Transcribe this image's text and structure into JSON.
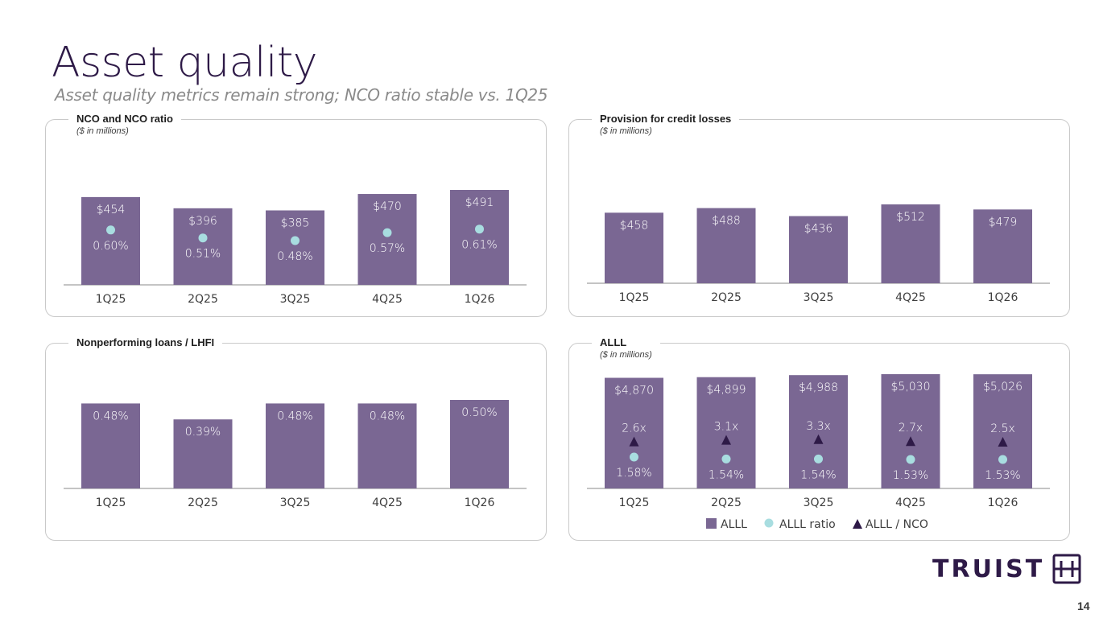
{
  "page": {
    "title": "Asset quality",
    "subtitle": "Asset quality metrics remain strong; NCO ratio stable vs. 1Q25",
    "page_number": "14",
    "logo_text": "TRUIST",
    "logo_icon": "truist-hh-logo-icon"
  },
  "colors": {
    "bar": "#7a6793",
    "dot": "#a8dde0",
    "triangle": "#2e1a47",
    "axis": "#b0b0b0"
  },
  "chart_data": [
    {
      "id": "nco",
      "type": "bar",
      "title": "NCO and NCO ratio",
      "units": "($ in millions)",
      "categories": [
        "1Q25",
        "2Q25",
        "3Q25",
        "4Q25",
        "1Q26"
      ],
      "series": [
        {
          "name": "NCO",
          "kind": "bar",
          "values": [
            454,
            396,
            385,
            470,
            491
          ],
          "labels": [
            "$454",
            "$396",
            "$385",
            "$470",
            "$491"
          ]
        },
        {
          "name": "NCO ratio",
          "kind": "dot",
          "values": [
            0.6,
            0.51,
            0.48,
            0.57,
            0.61
          ],
          "labels": [
            "0.60%",
            "0.51%",
            "0.48%",
            "0.57%",
            "0.61%"
          ]
        }
      ],
      "xlabel": "",
      "ylabel": "",
      "ylim": [
        0,
        491
      ],
      "grid": false
    },
    {
      "id": "provision",
      "type": "bar",
      "title": "Provision for credit losses",
      "units": "($ in millions)",
      "categories": [
        "1Q25",
        "2Q25",
        "3Q25",
        "4Q25",
        "1Q26"
      ],
      "series": [
        {
          "name": "Provision for credit losses",
          "kind": "bar",
          "values": [
            458,
            488,
            436,
            512,
            479
          ],
          "labels": [
            "$458",
            "$488",
            "$436",
            "$512",
            "$479"
          ]
        }
      ],
      "xlabel": "",
      "ylabel": "",
      "ylim": [
        0,
        512
      ],
      "grid": false
    },
    {
      "id": "npl",
      "type": "bar",
      "title": "Nonperforming loans / LHFI",
      "units": "",
      "categories": [
        "1Q25",
        "2Q25",
        "3Q25",
        "4Q25",
        "1Q26"
      ],
      "series": [
        {
          "name": "NPL / LHFI",
          "kind": "bar",
          "values": [
            0.48,
            0.39,
            0.48,
            0.48,
            0.5
          ],
          "labels": [
            "0.48%",
            "0.39%",
            "0.48%",
            "0.48%",
            "0.50%"
          ]
        }
      ],
      "xlabel": "",
      "ylabel": "",
      "ylim": [
        0,
        0.5
      ],
      "grid": false
    },
    {
      "id": "alll",
      "type": "bar",
      "title": "ALLL",
      "units": "($ in millions)",
      "categories": [
        "1Q25",
        "2Q25",
        "3Q25",
        "4Q25",
        "1Q26"
      ],
      "series": [
        {
          "name": "ALLL",
          "kind": "bar",
          "values": [
            4870,
            4899,
            4988,
            5030,
            5026
          ],
          "labels": [
            "$4,870",
            "$4,899",
            "$4,988",
            "$5,030",
            "$5,026"
          ]
        },
        {
          "name": "ALLL ratio",
          "kind": "dot",
          "values": [
            1.58,
            1.54,
            1.54,
            1.53,
            1.53
          ],
          "labels": [
            "1.58%",
            "1.54%",
            "1.54%",
            "1.53%",
            "1.53%"
          ]
        },
        {
          "name": "ALLL / NCO",
          "kind": "triangle",
          "values": [
            2.6,
            3.1,
            3.3,
            2.7,
            2.5
          ],
          "labels": [
            "2.6x",
            "3.1x",
            "3.3x",
            "2.7x",
            "2.5x"
          ]
        }
      ],
      "legend": {
        "placement": "bottom-center",
        "entries": [
          "ALLL",
          "ALLL ratio",
          "ALLL / NCO"
        ]
      },
      "xlabel": "",
      "ylabel": "",
      "ylim": [
        0,
        5030
      ],
      "grid": false
    }
  ]
}
